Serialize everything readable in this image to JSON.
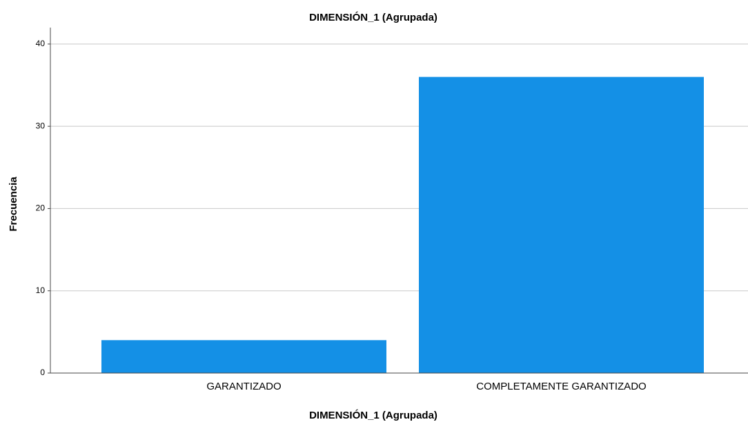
{
  "chart_data": {
    "type": "bar",
    "title": "DIMENSIÓN_1 (Agrupada)",
    "x_label": "DIMENSIÓN_1 (Agrupada)",
    "y_label": "Frecuencia",
    "categories": [
      "GARANTIZADO",
      "COMPLETAMENTE GARANTIZADO"
    ],
    "values": [
      4,
      36
    ],
    "color": "#1490e6",
    "ylim": [
      0,
      42
    ],
    "yticks": [
      0,
      10,
      20,
      30,
      40
    ],
    "grid": true
  }
}
